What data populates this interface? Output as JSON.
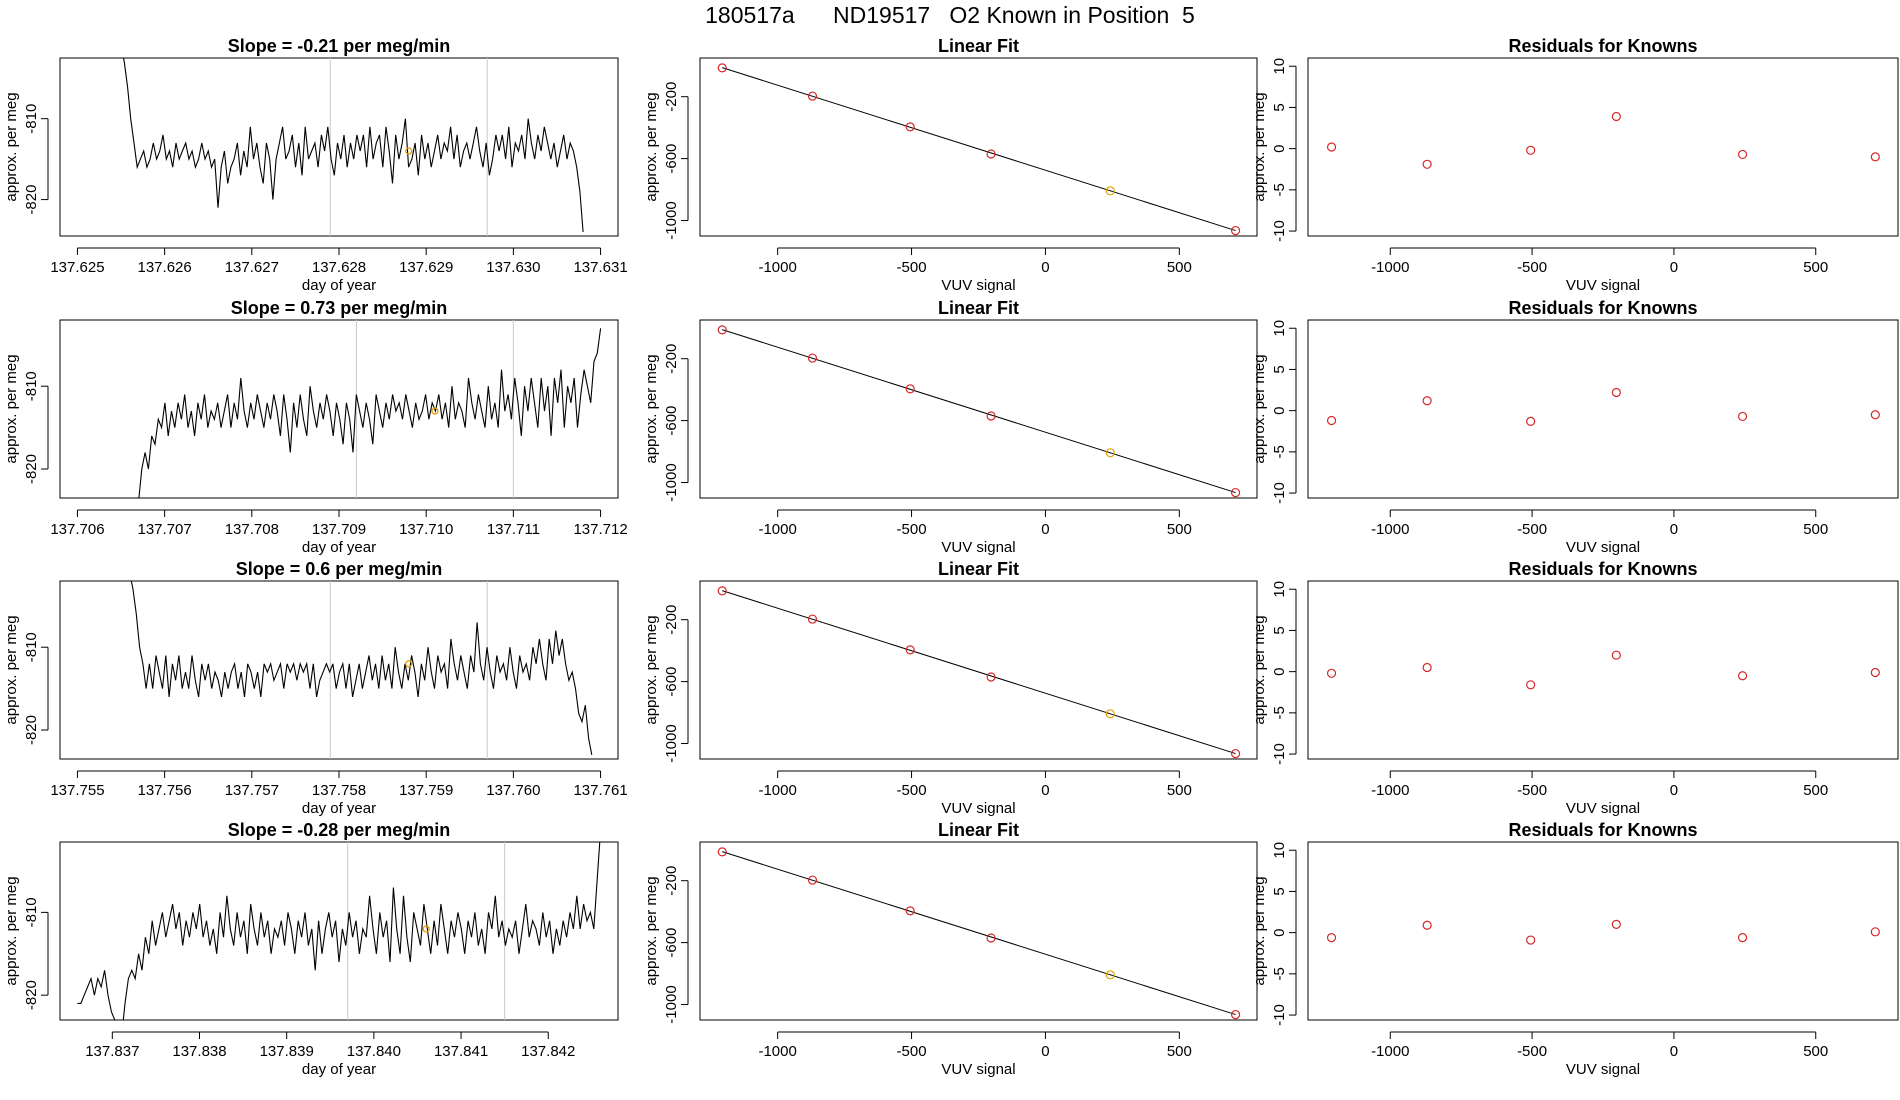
{
  "figure": {
    "title": "180517a      ND19517   O2 Known in Position  5"
  },
  "colors": {
    "line": "#000000",
    "point": "#d62728",
    "highlight": "#e69f00",
    "vline": "#c8c8c8"
  },
  "chart_data": [
    {
      "type": "line",
      "title": "Slope =  -0.21  per meg/min",
      "xlabel": "day of year",
      "ylabel": "approx. per meg",
      "xlim": [
        137.6248,
        137.6312
      ],
      "ylim": [
        -824.5,
        -802.5
      ],
      "x_ticks": [
        "137.625",
        "137.626",
        "137.627",
        "137.628",
        "137.629",
        "137.630",
        "137.631"
      ],
      "y_ticks": [
        "-810",
        "-820"
      ],
      "x_start": 137.6255,
      "x_end": 137.6308,
      "y_values": [
        -801,
        -803,
        -806,
        -810,
        -813,
        -816,
        -815,
        -814,
        -816,
        -815,
        -813,
        -815,
        -814,
        -812,
        -815,
        -814,
        -816,
        -813,
        -815,
        -814,
        -813,
        -815,
        -814,
        -816,
        -815,
        -813,
        -815,
        -814,
        -816,
        -815,
        -821,
        -816,
        -814,
        -818,
        -816,
        -815,
        -813,
        -817,
        -814,
        -816,
        -811,
        -815,
        -813,
        -816,
        -818,
        -813,
        -815,
        -820,
        -815,
        -813,
        -811,
        -815,
        -814,
        -812,
        -816,
        -813,
        -817,
        -811,
        -815,
        -814,
        -813,
        -816,
        -812,
        -814,
        -811,
        -815,
        -817,
        -813,
        -815,
        -812,
        -816,
        -813,
        -815,
        -812,
        -814,
        -812,
        -816,
        -811,
        -815,
        -813,
        -812,
        -816,
        -811,
        -814,
        -818,
        -812,
        -815,
        -813,
        -810,
        -816,
        -815,
        -813,
        -817,
        -812,
        -815,
        -813,
        -816,
        -814,
        -812,
        -815,
        -813,
        -814,
        -811,
        -815,
        -812,
        -816,
        -814,
        -813,
        -815,
        -813,
        -811,
        -814,
        -816,
        -813,
        -817,
        -815,
        -812,
        -814,
        -812,
        -815,
        -811,
        -816,
        -813,
        -814,
        -812,
        -815,
        -810,
        -813,
        -815,
        -812,
        -814,
        -811,
        -813,
        -815,
        -813,
        -816,
        -814,
        -812,
        -815,
        -813,
        -814,
        -816,
        -819,
        -824
      ],
      "vlines": [
        137.6279,
        137.6297
      ],
      "highlight": {
        "x": 137.6288,
        "y": -814
      }
    },
    {
      "type": "scatter",
      "title": "Linear Fit",
      "xlabel": "VUV signal",
      "ylabel": "approx. per meg",
      "xlim": [
        -1290,
        790
      ],
      "ylim": [
        -1100,
        50
      ],
      "x_ticks": [
        -1000,
        -500,
        0,
        500
      ],
      "y_ticks": [
        -200,
        -600,
        -1000
      ],
      "points": [
        {
          "x": -1207,
          "y": -14
        },
        {
          "x": -870,
          "y": -196
        },
        {
          "x": -505,
          "y": -395
        },
        {
          "x": -203,
          "y": -570
        },
        {
          "x": 242,
          "y": -808
        },
        {
          "x": 710,
          "y": -1065
        }
      ],
      "highlight_index": 4,
      "fit_line": [
        {
          "x": -1207,
          "y": -12
        },
        {
          "x": 710,
          "y": -1065
        }
      ]
    },
    {
      "type": "scatter",
      "title": "Residuals for Knowns",
      "xlabel": "VUV signal",
      "ylabel": "approx. per meg",
      "xlim": [
        -1290,
        790
      ],
      "ylim": [
        -10.6,
        11
      ],
      "x_ticks": [
        -1000,
        -500,
        0,
        500
      ],
      "y_ticks": [
        10,
        5,
        0,
        -5,
        -10
      ],
      "points": [
        {
          "x": -1207,
          "y": 0.2
        },
        {
          "x": -870,
          "y": -1.9
        },
        {
          "x": -505,
          "y": -0.2
        },
        {
          "x": -203,
          "y": 3.9
        },
        {
          "x": 242,
          "y": -0.7
        },
        {
          "x": 710,
          "y": -1.0
        }
      ]
    },
    {
      "type": "line",
      "title": "Slope =  0.73  per meg/min",
      "xlabel": "day of year",
      "ylabel": "approx. per meg",
      "xlim": [
        137.7058,
        137.7122
      ],
      "ylim": [
        -823.5,
        -802
      ],
      "x_ticks": [
        "137.706",
        "137.707",
        "137.708",
        "137.709",
        "137.710",
        "137.711",
        "137.712"
      ],
      "y_ticks": [
        "-810",
        "-820"
      ],
      "x_start": 137.7067,
      "x_end": 137.712,
      "y_values": [
        -824,
        -820,
        -818,
        -820,
        -816,
        -817,
        -814,
        -815,
        -812,
        -816,
        -813,
        -815,
        -812,
        -814,
        -811,
        -815,
        -813,
        -816,
        -812,
        -814,
        -811,
        -815,
        -813,
        -814,
        -812,
        -815,
        -813,
        -811,
        -815,
        -812,
        -814,
        -809,
        -813,
        -815,
        -812,
        -814,
        -811,
        -813,
        -815,
        -812,
        -814,
        -811,
        -813,
        -816,
        -811,
        -814,
        -818,
        -812,
        -815,
        -811,
        -814,
        -816,
        -810,
        -813,
        -815,
        -812,
        -814,
        -811,
        -813,
        -816,
        -812,
        -814,
        -817,
        -812,
        -814,
        -818,
        -811,
        -813,
        -815,
        -812,
        -814,
        -817,
        -811,
        -813,
        -815,
        -812,
        -814,
        -811,
        -813,
        -812,
        -814,
        -811,
        -813,
        -815,
        -812,
        -814,
        -813,
        -811,
        -814,
        -812,
        -813,
        -811,
        -814,
        -812,
        -815,
        -810,
        -814,
        -812,
        -813,
        -815,
        -809,
        -812,
        -814,
        -811,
        -813,
        -815,
        -810,
        -814,
        -812,
        -815,
        -808,
        -813,
        -811,
        -814,
        -809,
        -812,
        -816,
        -810,
        -813,
        -809,
        -812,
        -815,
        -809,
        -813,
        -810,
        -816,
        -809,
        -812,
        -808,
        -815,
        -810,
        -812,
        -809,
        -815,
        -811,
        -808,
        -810,
        -812,
        -807,
        -806,
        -803
      ],
      "vlines": [
        137.7092,
        137.711
      ],
      "highlight": {
        "x": 137.7101,
        "y": -813
      }
    },
    {
      "type": "scatter",
      "title": "Linear Fit",
      "xlabel": "VUV signal",
      "ylabel": "approx. per meg",
      "xlim": [
        -1290,
        790
      ],
      "ylim": [
        -1100,
        50
      ],
      "x_ticks": [
        -1000,
        -500,
        0,
        500
      ],
      "y_ticks": [
        -200,
        -600,
        -1000
      ],
      "points": [
        {
          "x": -1207,
          "y": -14
        },
        {
          "x": -870,
          "y": -196
        },
        {
          "x": -505,
          "y": -395
        },
        {
          "x": -203,
          "y": -570
        },
        {
          "x": 242,
          "y": -808
        },
        {
          "x": 710,
          "y": -1065
        }
      ],
      "highlight_index": 4,
      "fit_line": [
        {
          "x": -1207,
          "y": -12
        },
        {
          "x": 710,
          "y": -1065
        }
      ]
    },
    {
      "type": "scatter",
      "title": "Residuals for Knowns",
      "xlabel": "VUV signal",
      "ylabel": "approx. per meg",
      "xlim": [
        -1290,
        790
      ],
      "ylim": [
        -10.6,
        11
      ],
      "x_ticks": [
        -1000,
        -500,
        0,
        500
      ],
      "y_ticks": [
        10,
        5,
        0,
        -5,
        -10
      ],
      "points": [
        {
          "x": -1207,
          "y": -1.2
        },
        {
          "x": -870,
          "y": 1.2
        },
        {
          "x": -505,
          "y": -1.3
        },
        {
          "x": -203,
          "y": 2.2
        },
        {
          "x": 242,
          "y": -0.7
        },
        {
          "x": 710,
          "y": -0.5
        }
      ]
    },
    {
      "type": "line",
      "title": "Slope =  0.6  per meg/min",
      "xlabel": "day of year",
      "ylabel": "approx. per meg",
      "xlim": [
        137.7548,
        137.7612
      ],
      "ylim": [
        -823.5,
        -802
      ],
      "x_ticks": [
        "137.755",
        "137.756",
        "137.757",
        "137.758",
        "137.759",
        "137.760",
        "137.761"
      ],
      "y_ticks": [
        "-810",
        "-820"
      ],
      "x_start": 137.7556,
      "x_end": 137.7609,
      "y_values": [
        -801,
        -803,
        -806,
        -810,
        -812,
        -815,
        -812,
        -815,
        -811,
        -813,
        -815,
        -811,
        -816,
        -812,
        -814,
        -811,
        -815,
        -813,
        -815,
        -811,
        -814,
        -816,
        -812,
        -814,
        -812,
        -815,
        -813,
        -814,
        -816,
        -813,
        -815,
        -813,
        -812,
        -815,
        -813,
        -816,
        -812,
        -813,
        -815,
        -813,
        -816,
        -812,
        -813,
        -812,
        -814,
        -813,
        -812,
        -815,
        -812,
        -813,
        -812,
        -814,
        -812,
        -813,
        -812,
        -815,
        -812,
        -816,
        -814,
        -813,
        -812,
        -813,
        -812,
        -815,
        -813,
        -812,
        -815,
        -812,
        -816,
        -814,
        -812,
        -815,
        -813,
        -811,
        -814,
        -812,
        -815,
        -811,
        -814,
        -812,
        -815,
        -810,
        -813,
        -815,
        -812,
        -814,
        -811,
        -813,
        -816,
        -812,
        -814,
        -810,
        -813,
        -815,
        -811,
        -813,
        -812,
        -815,
        -809,
        -812,
        -814,
        -811,
        -813,
        -815,
        -811,
        -813,
        -807,
        -812,
        -814,
        -810,
        -813,
        -815,
        -811,
        -813,
        -812,
        -814,
        -810,
        -813,
        -815,
        -811,
        -813,
        -812,
        -814,
        -810,
        -812,
        -809,
        -812,
        -814,
        -809,
        -812,
        -808,
        -811,
        -809,
        -812,
        -814,
        -813,
        -815,
        -818,
        -819,
        -817,
        -821,
        -823
      ],
      "vlines": [
        137.7579,
        137.7597
      ],
      "highlight": {
        "x": 137.7588,
        "y": -812
      }
    },
    {
      "type": "scatter",
      "title": "Linear Fit",
      "xlabel": "VUV signal",
      "ylabel": "approx. per meg",
      "xlim": [
        -1290,
        790
      ],
      "ylim": [
        -1100,
        50
      ],
      "x_ticks": [
        -1000,
        -500,
        0,
        500
      ],
      "y_ticks": [
        -200,
        -600,
        -1000
      ],
      "points": [
        {
          "x": -1207,
          "y": -14
        },
        {
          "x": -870,
          "y": -196
        },
        {
          "x": -505,
          "y": -395
        },
        {
          "x": -203,
          "y": -570
        },
        {
          "x": 242,
          "y": -808
        },
        {
          "x": 710,
          "y": -1065
        }
      ],
      "highlight_index": 4,
      "fit_line": [
        {
          "x": -1207,
          "y": -12
        },
        {
          "x": 710,
          "y": -1065
        }
      ]
    },
    {
      "type": "scatter",
      "title": "Residuals for Knowns",
      "xlabel": "VUV signal",
      "ylabel": "approx. per meg",
      "xlim": [
        -1290,
        790
      ],
      "ylim": [
        -10.6,
        11
      ],
      "x_ticks": [
        -1000,
        -500,
        0,
        500
      ],
      "y_ticks": [
        10,
        5,
        0,
        -5,
        -10
      ],
      "points": [
        {
          "x": -1207,
          "y": -0.2
        },
        {
          "x": -870,
          "y": 0.5
        },
        {
          "x": -505,
          "y": -1.6
        },
        {
          "x": -203,
          "y": 2.0
        },
        {
          "x": 242,
          "y": -0.5
        },
        {
          "x": 710,
          "y": -0.1
        }
      ]
    },
    {
      "type": "line",
      "title": "Slope =  -0.28  per meg/min",
      "xlabel": "day of year",
      "ylabel": "approx. per meg",
      "xlim": [
        137.8364,
        137.8428
      ],
      "ylim": [
        -823,
        -801.5
      ],
      "x_ticks": [
        "137.837",
        "137.838",
        "137.839",
        "137.840",
        "137.841",
        "137.842"
      ],
      "y_ticks": [
        "-810",
        "-820"
      ],
      "x_start": 137.8366,
      "x_end": 137.8426,
      "y_values": [
        -821,
        -821,
        -820,
        -819,
        -818,
        -820,
        -818,
        -819,
        -817,
        -820,
        -822,
        -823,
        -824,
        -825,
        -821,
        -818,
        -817,
        -818,
        -815,
        -817,
        -813,
        -815,
        -811,
        -814,
        -812,
        -810,
        -813,
        -811,
        -809,
        -812,
        -810,
        -814,
        -811,
        -813,
        -810,
        -812,
        -809,
        -813,
        -811,
        -814,
        -812,
        -815,
        -810,
        -813,
        -808,
        -812,
        -814,
        -810,
        -813,
        -811,
        -815,
        -809,
        -812,
        -814,
        -810,
        -813,
        -811,
        -815,
        -812,
        -813,
        -811,
        -814,
        -810,
        -812,
        -815,
        -811,
        -813,
        -810,
        -814,
        -812,
        -817,
        -811,
        -815,
        -812,
        -810,
        -813,
        -811,
        -816,
        -812,
        -814,
        -810,
        -813,
        -811,
        -815,
        -812,
        -813,
        -808,
        -812,
        -815,
        -810,
        -813,
        -811,
        -816,
        -807,
        -812,
        -815,
        -808,
        -813,
        -816,
        -810,
        -812,
        -814,
        -809,
        -812,
        -815,
        -811,
        -814,
        -809,
        -812,
        -815,
        -811,
        -813,
        -810,
        -812,
        -815,
        -811,
        -813,
        -810,
        -814,
        -812,
        -815,
        -810,
        -812,
        -808,
        -813,
        -811,
        -814,
        -812,
        -813,
        -811,
        -815,
        -812,
        -809,
        -813,
        -811,
        -812,
        -814,
        -810,
        -813,
        -811,
        -815,
        -812,
        -814,
        -811,
        -813,
        -810,
        -812,
        -808,
        -812,
        -809,
        -811,
        -810,
        -812,
        -806,
        -800
      ],
      "vlines": [
        137.8397,
        137.8415
      ],
      "highlight": {
        "x": 137.8406,
        "y": -812
      }
    },
    {
      "type": "scatter",
      "title": "Linear Fit",
      "xlabel": "VUV signal",
      "ylabel": "approx. per meg",
      "xlim": [
        -1290,
        790
      ],
      "ylim": [
        -1100,
        50
      ],
      "x_ticks": [
        -1000,
        -500,
        0,
        500
      ],
      "y_ticks": [
        -200,
        -600,
        -1000
      ],
      "points": [
        {
          "x": -1207,
          "y": -14
        },
        {
          "x": -870,
          "y": -196
        },
        {
          "x": -505,
          "y": -395
        },
        {
          "x": -203,
          "y": -570
        },
        {
          "x": 242,
          "y": -808
        },
        {
          "x": 710,
          "y": -1065
        }
      ],
      "highlight_index": 4,
      "fit_line": [
        {
          "x": -1207,
          "y": -12
        },
        {
          "x": 710,
          "y": -1065
        }
      ]
    },
    {
      "type": "scatter",
      "title": "Residuals for Knowns",
      "xlabel": "VUV signal",
      "ylabel": "approx. per meg",
      "xlim": [
        -1290,
        790
      ],
      "ylim": [
        -10.6,
        11
      ],
      "x_ticks": [
        -1000,
        -500,
        0,
        500
      ],
      "y_ticks": [
        10,
        5,
        0,
        -5,
        -10
      ],
      "points": [
        {
          "x": -1207,
          "y": -0.6
        },
        {
          "x": -870,
          "y": 0.9
        },
        {
          "x": -505,
          "y": -0.9
        },
        {
          "x": -203,
          "y": 1.0
        },
        {
          "x": 242,
          "y": -0.6
        },
        {
          "x": 710,
          "y": 0.1
        }
      ]
    }
  ]
}
